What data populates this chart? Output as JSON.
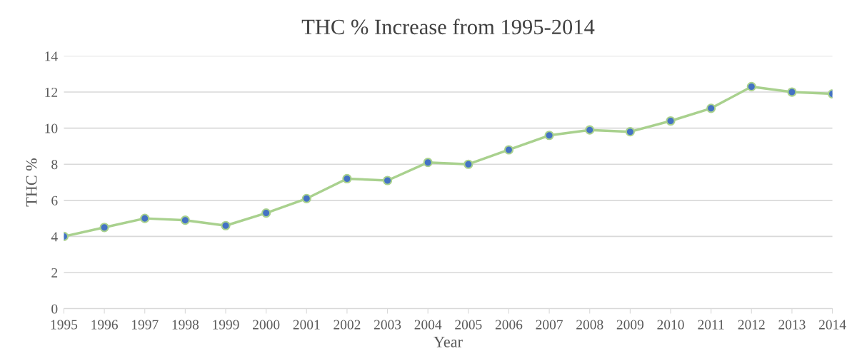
{
  "chart_data": {
    "type": "line",
    "title": "THC % Increase from 1995-2014",
    "xlabel": "Year",
    "ylabel": "THC %",
    "categories": [
      "1995",
      "1996",
      "1997",
      "1998",
      "1999",
      "2000",
      "2001",
      "2002",
      "2003",
      "2004",
      "2005",
      "2006",
      "2007",
      "2008",
      "2009",
      "2010",
      "2011",
      "2012",
      "2013",
      "2014"
    ],
    "series": [
      {
        "color": "#a9d18e",
        "values": [
          4.0,
          4.5,
          5.0,
          4.9,
          4.6,
          5.3,
          6.1,
          7.2,
          7.1,
          8.1,
          8.0,
          8.8,
          9.6,
          9.9,
          9.8,
          10.4,
          11.1,
          12.3,
          12.0,
          11.9
        ]
      }
    ],
    "ylim": [
      0,
      14
    ],
    "yticks": [
      0,
      2,
      4,
      6,
      8,
      10,
      12,
      14
    ],
    "grid": "y",
    "marker": "circle",
    "line_style": "solid",
    "legend": false
  }
}
